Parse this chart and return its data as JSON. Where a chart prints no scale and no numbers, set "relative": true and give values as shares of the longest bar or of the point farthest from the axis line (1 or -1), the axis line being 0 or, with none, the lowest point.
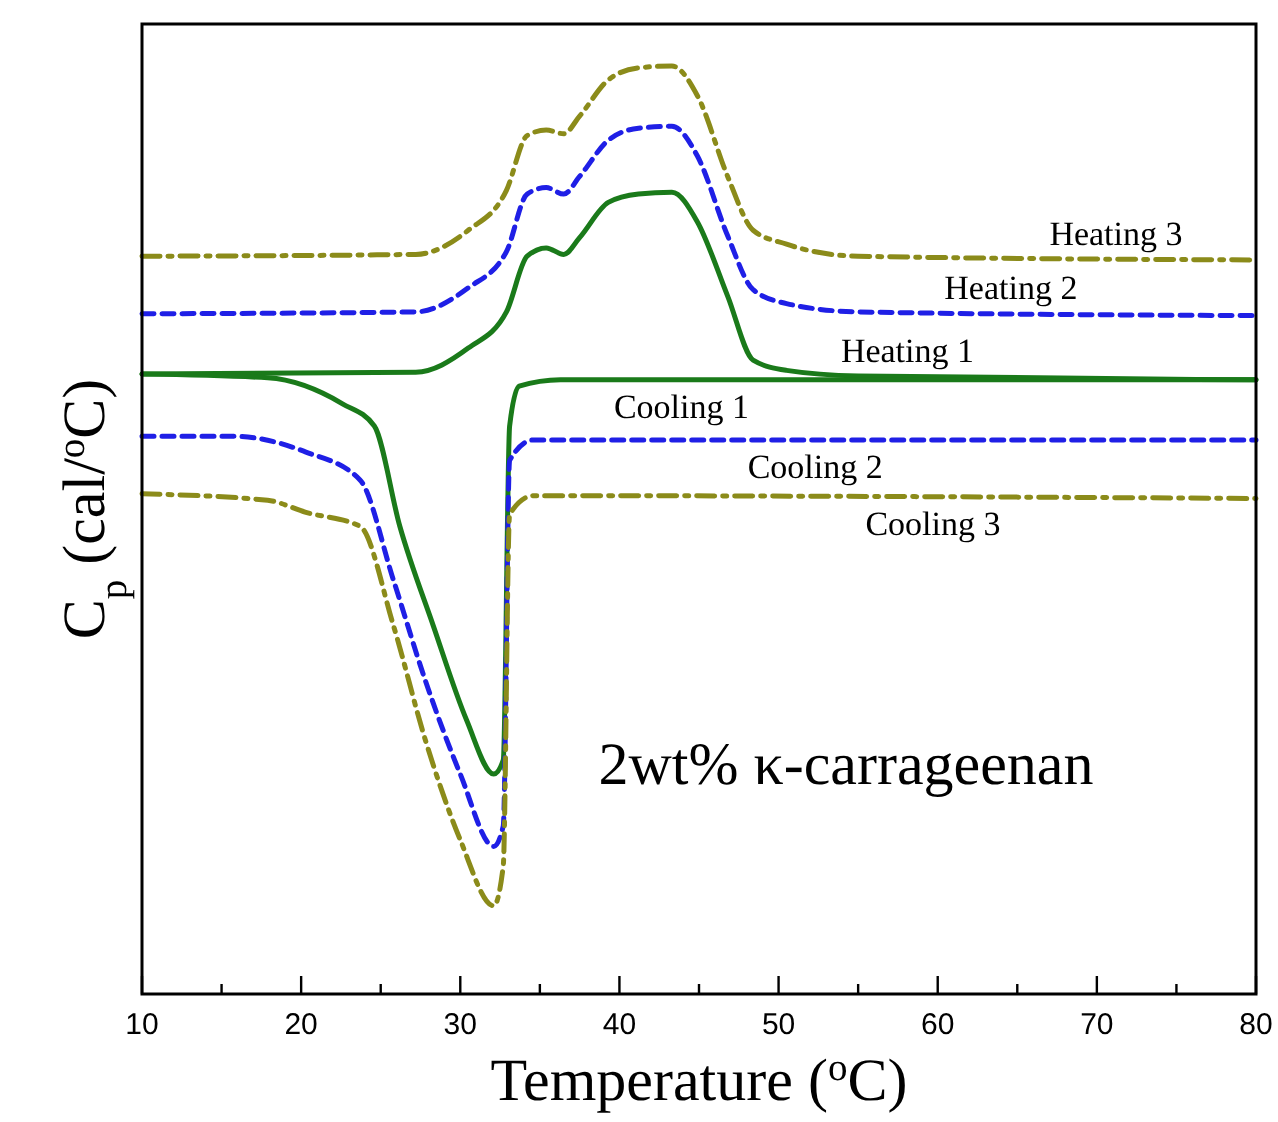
{
  "chart_data": {
    "type": "line",
    "relative": true,
    "xlabel": "Temperature ($^{o}$C)",
    "ylabel": "C$_{p}$ (cal/$^{o}$C)",
    "xlim": [
      10,
      80
    ],
    "xticks": [
      10,
      {
        "value": 15,
        "label": null
      },
      20,
      {
        "value": 25,
        "label": null
      },
      30,
      {
        "value": 35,
        "label": null
      },
      40,
      {
        "value": 45,
        "label": null
      },
      50,
      {
        "value": 55,
        "label": null
      },
      60,
      {
        "value": 65,
        "label": null
      },
      70,
      {
        "value": 75,
        "label": null
      },
      80
    ],
    "tick_labels": "x",
    "grid": false,
    "legend": false,
    "annotations": [
      "2wt% κ-carrageenan"
    ],
    "series": [
      {
        "name": "Heating 3",
        "color": "#8b8b1a",
        "line_style": "dashdot",
        "x": [
          10,
          27.2,
          30.5,
          32.9,
          34.2,
          35.4,
          36.5,
          37.5,
          39.3,
          41.2,
          43.3,
          44.9,
          46.8,
          48.4,
          50.5,
          55,
          80
        ],
        "values": [
          0.795,
          0.797,
          0.823,
          0.866,
          0.925,
          0.931,
          0.927,
          0.946,
          0.985,
          0.998,
          1,
          0.968,
          0.881,
          0.823,
          0.808,
          0.795,
          0.791
        ]
      },
      {
        "name": "Heating 2",
        "color": "#1f1fe6",
        "line_style": "dashed",
        "x": [
          10,
          27.2,
          30.5,
          32.9,
          34.2,
          35.4,
          36.5,
          37.5,
          39.3,
          41.2,
          43.3,
          44.9,
          46.8,
          48.4,
          50.5,
          55,
          80
        ],
        "values": [
          0.733,
          0.735,
          0.761,
          0.8,
          0.862,
          0.869,
          0.862,
          0.881,
          0.92,
          0.933,
          0.935,
          0.903,
          0.817,
          0.759,
          0.744,
          0.735,
          0.731
        ]
      },
      {
        "name": "Heating 1",
        "color": "#1a7a1a",
        "line_style": "solid",
        "x": [
          10,
          27.2,
          30.5,
          32.9,
          34.2,
          35.4,
          36.5,
          37.5,
          39.3,
          41.2,
          43.3,
          44.9,
          46.8,
          48.4,
          50.5,
          55,
          80
        ],
        "values": [
          0.668,
          0.67,
          0.696,
          0.735,
          0.795,
          0.804,
          0.797,
          0.815,
          0.853,
          0.862,
          0.864,
          0.832,
          0.752,
          0.683,
          0.672,
          0.666,
          0.662
        ]
      },
      {
        "name": "Cooling 1",
        "color": "#1a7a1a",
        "line_style": "solid",
        "x": [
          10,
          17.9,
          22.6,
          24.6,
          26.2,
          28.3,
          30.4,
          32.1,
          32.7,
          33.1,
          33.7,
          36.3,
          80
        ],
        "values": [
          0.668,
          0.664,
          0.636,
          0.612,
          0.504,
          0.397,
          0.295,
          0.237,
          0.252,
          0.612,
          0.655,
          0.662,
          0.662
        ]
      },
      {
        "name": "Cooling 2",
        "color": "#1f1fe6",
        "line_style": "dashed",
        "x": [
          10,
          15.7,
          20.3,
          23.7,
          25.8,
          27.8,
          30,
          32.1,
          32.7,
          33.1,
          34.6,
          80
        ],
        "values": [
          0.601,
          0.601,
          0.584,
          0.554,
          0.446,
          0.338,
          0.237,
          0.159,
          0.181,
          0.575,
          0.597,
          0.597
        ]
      },
      {
        "name": "Cooling 3",
        "color": "#8b8b1a",
        "line_style": "dashdot",
        "x": [
          10,
          17.9,
          20.3,
          23.7,
          25.8,
          27.8,
          30,
          32.1,
          32.7,
          33.1,
          34.6,
          80
        ],
        "values": [
          0.539,
          0.532,
          0.519,
          0.504,
          0.397,
          0.274,
          0.166,
          0.095,
          0.138,
          0.517,
          0.537,
          0.534
        ]
      }
    ]
  }
}
